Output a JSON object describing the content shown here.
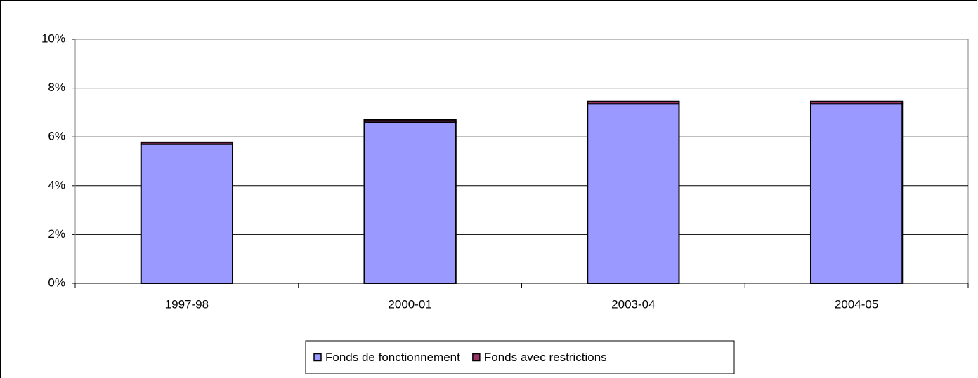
{
  "chart_data": {
    "type": "stacked_bar",
    "categories": [
      "1997-98",
      "2000-01",
      "2003-04",
      "2004-05"
    ],
    "series": [
      {
        "name": "Fonds de fonctionnement",
        "color": "#9999ff",
        "values": [
          5.7,
          6.6,
          7.35,
          7.35
        ]
      },
      {
        "name": "Fonds avec restrictions",
        "color": "#993366",
        "values": [
          0.08,
          0.1,
          0.1,
          0.1
        ]
      }
    ],
    "ylim": [
      0,
      10
    ],
    "yticks": [
      {
        "value": 0,
        "label": "0%"
      },
      {
        "value": 2,
        "label": "2%"
      },
      {
        "value": 4,
        "label": "4%"
      },
      {
        "value": 6,
        "label": "6%"
      },
      {
        "value": 8,
        "label": "8%"
      },
      {
        "value": 10,
        "label": "10%"
      }
    ],
    "grid": true,
    "legend": "bottom"
  }
}
